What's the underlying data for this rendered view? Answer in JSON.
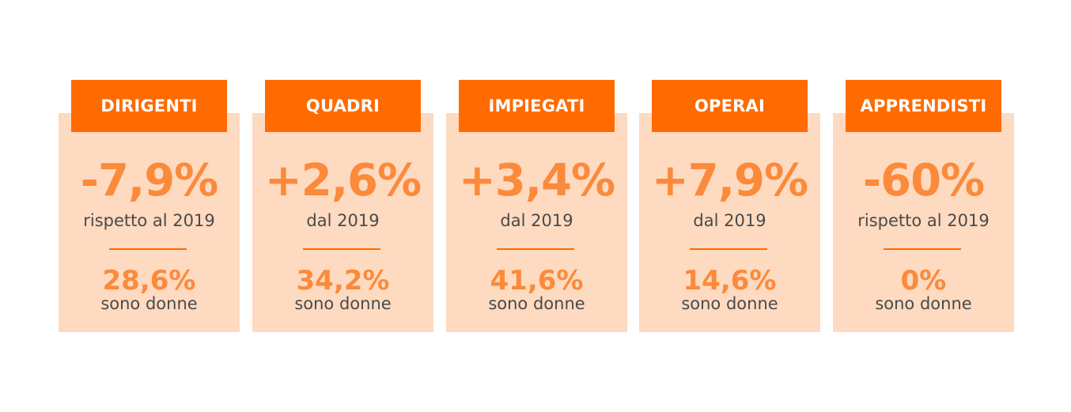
{
  "colors": {
    "header": "#ff6b00",
    "card_background": "#fedac0",
    "highlight": "#fc8a3b",
    "text": "#4a4a4a"
  },
  "cards": [
    {
      "title": "DIRIGENTI",
      "change": "-7,9%",
      "reference": "rispetto al 2019",
      "women_pct": "28,6%",
      "women_label": "sono donne"
    },
    {
      "title": "QUADRI",
      "change": "+2,6%",
      "reference": "dal 2019",
      "women_pct": "34,2%",
      "women_label": "sono donne"
    },
    {
      "title": "IMPIEGATI",
      "change": "+3,4%",
      "reference": "dal 2019",
      "women_pct": "41,6%",
      "women_label": "sono donne"
    },
    {
      "title": "OPERAI",
      "change": "+7,9%",
      "reference": "dal 2019",
      "women_pct": "14,6%",
      "women_label": "sono donne"
    },
    {
      "title": "APPRENDISTI",
      "change": "-60%",
      "reference": "rispetto al 2019",
      "women_pct": "0%",
      "women_label": "sono donne"
    }
  ]
}
